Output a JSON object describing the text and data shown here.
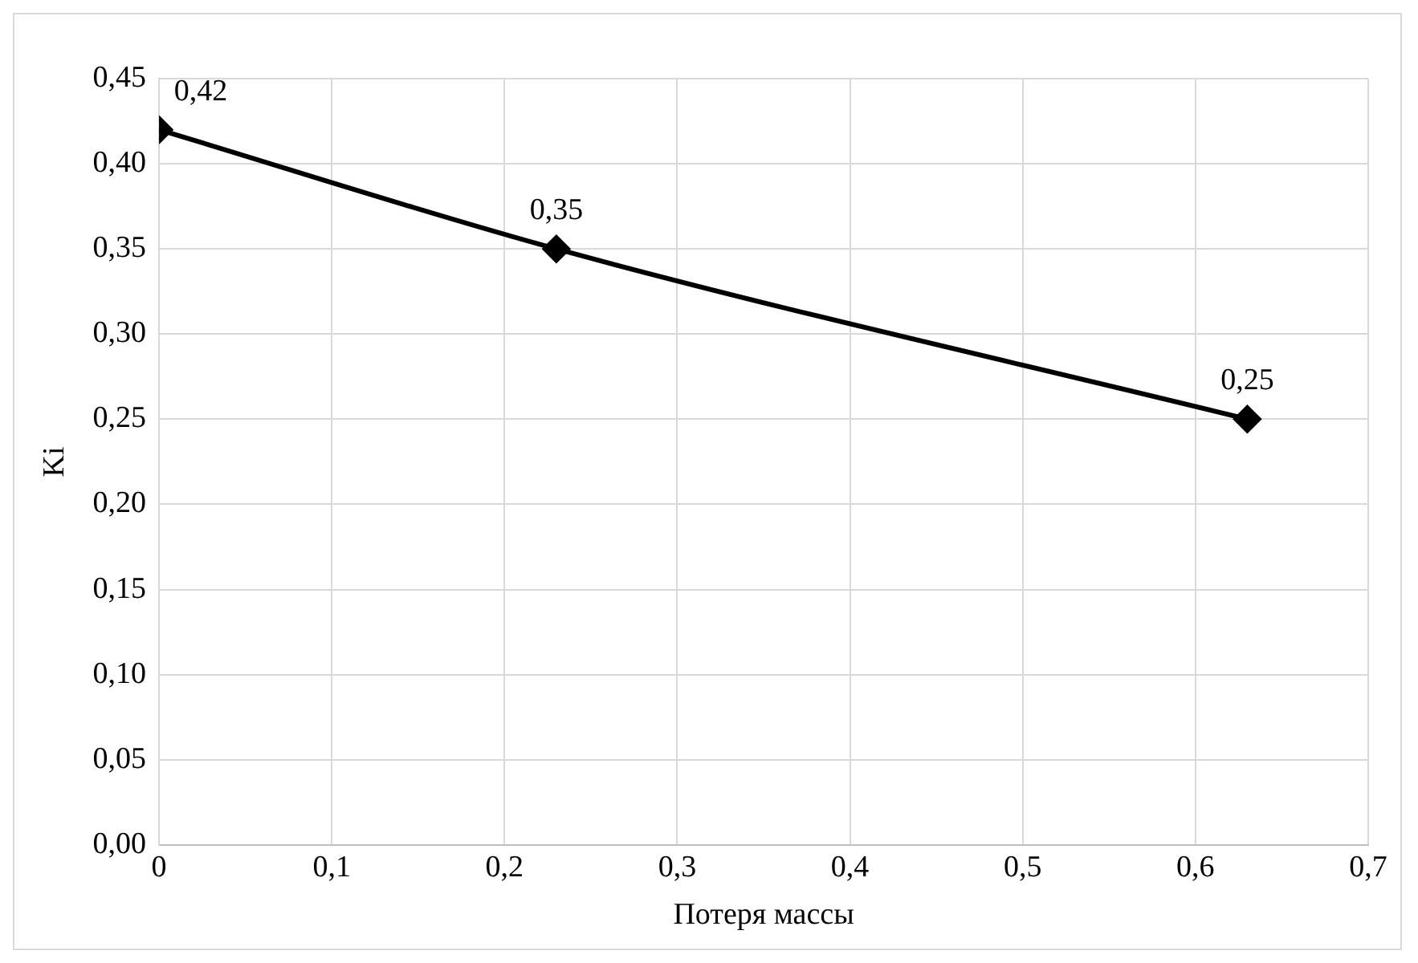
{
  "chart_data": {
    "type": "line",
    "xlabel": "Потеря массы",
    "ylabel": "Ki",
    "x": [
      0,
      0.23,
      0.63
    ],
    "series": [
      {
        "color": "#000000",
        "values": [
          0.42,
          0.35,
          0.25
        ],
        "value_labels": [
          "0,42",
          "0,35",
          "0,25"
        ]
      }
    ],
    "xlim": [
      0,
      0.7
    ],
    "ylim": [
      0,
      0.45
    ],
    "xticks": [
      0,
      {
        "value": 0.1,
        "label": "0,1"
      },
      {
        "value": 0.2,
        "label": "0,2"
      },
      {
        "value": 0.3,
        "label": "0,3"
      },
      {
        "value": 0.4,
        "label": "0,4"
      },
      {
        "value": 0.5,
        "label": "0,5"
      },
      {
        "value": 0.6,
        "label": "0,6"
      },
      {
        "value": 0.7,
        "label": "0,7"
      }
    ],
    "yticks": [
      {
        "value": 0,
        "label": "0,00"
      },
      {
        "value": 0.05,
        "label": "0,05"
      },
      {
        "value": 0.1,
        "label": "0,10"
      },
      {
        "value": 0.15,
        "label": "0,15"
      },
      {
        "value": 0.2,
        "label": "0,20"
      },
      {
        "value": 0.25,
        "label": "0,25"
      },
      {
        "value": 0.3,
        "label": "0,30"
      },
      {
        "value": 0.35,
        "label": "0,35"
      },
      {
        "value": 0.4,
        "label": "0,40"
      },
      {
        "value": 0.45,
        "label": "0,45"
      }
    ],
    "grid": true,
    "legend": false,
    "marker": "diamond",
    "line_style": "solid"
  }
}
